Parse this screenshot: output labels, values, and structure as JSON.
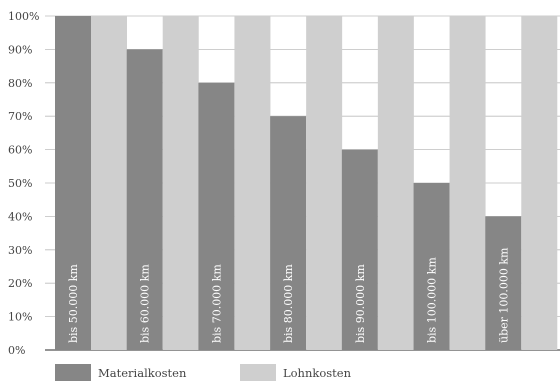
{
  "chart_data": {
    "type": "bar",
    "categories": [
      "bis 50.000 km",
      "bis 60.000 km",
      "bis 70.000 km",
      "bis 80.000 km",
      "bis 90.000 km",
      "bis 100.000 km",
      "über 100.000 km"
    ],
    "series": [
      {
        "name": "Materialkosten",
        "values": [
          100,
          90,
          80,
          70,
          60,
          50,
          40
        ],
        "color": "#868686"
      },
      {
        "name": "Lohnkosten",
        "values": [
          100,
          100,
          100,
          100,
          100,
          100,
          100
        ],
        "color": "#cfcfcf"
      }
    ],
    "y_ticks": [
      "0%",
      "10%",
      "20%",
      "30%",
      "40%",
      "50%",
      "60%",
      "70%",
      "80%",
      "90%",
      "100%"
    ],
    "ylim": [
      0,
      100
    ],
    "grid": true,
    "legend": "bottom",
    "category_labels_position": "inside-bars-vertical"
  }
}
